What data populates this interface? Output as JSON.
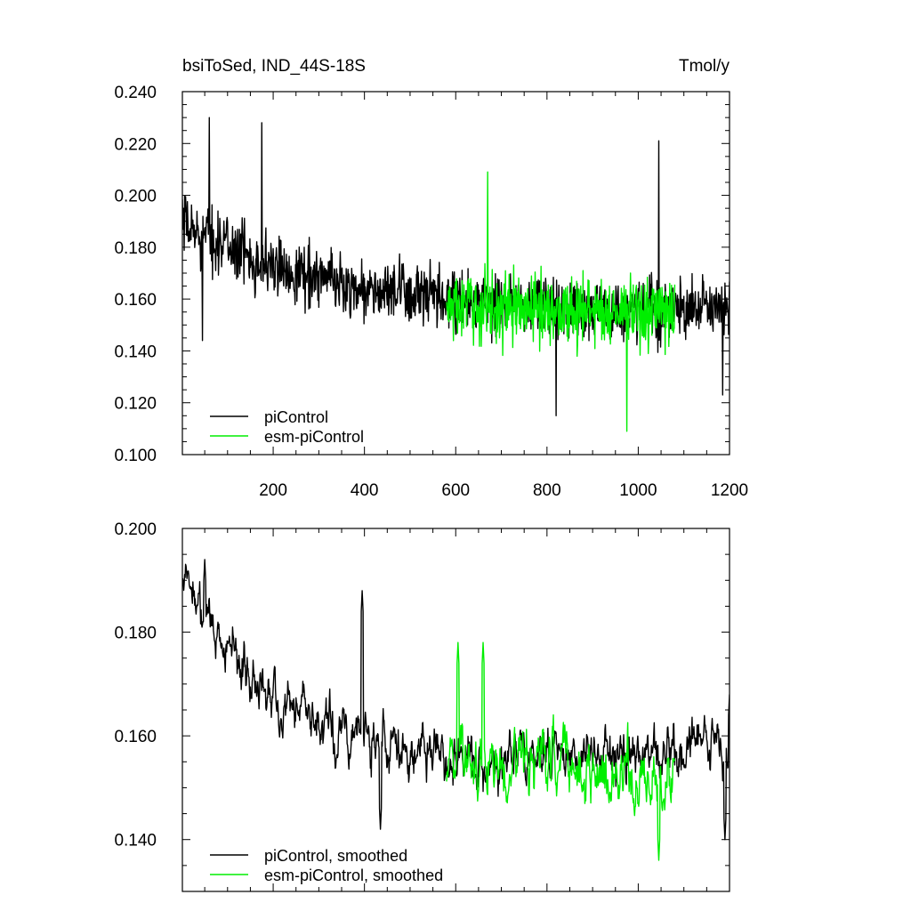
{
  "chart_data": [
    {
      "type": "line",
      "title_left": "bsiToSed, IND_44S-18S",
      "title_right": "Tmol/y",
      "xlabel": "",
      "ylabel": "",
      "xlim": [
        1,
        1200
      ],
      "ylim": [
        0.1,
        0.24
      ],
      "x_ticks": [
        200,
        400,
        600,
        800,
        1000,
        1200
      ],
      "x_tick_labels": [
        "200",
        "400",
        "600",
        "800",
        "1000",
        "1200"
      ],
      "y_ticks": [
        0.1,
        0.12,
        0.14,
        0.16,
        0.18,
        0.2,
        0.22,
        0.24
      ],
      "y_tick_labels": [
        "0.100",
        "0.120",
        "0.140",
        "0.160",
        "0.180",
        "0.200",
        "0.220",
        "0.240"
      ],
      "legend_position": "bottom-left",
      "series": [
        {
          "name": "piControl",
          "color": "#000000",
          "x_start": 1,
          "x_end": 1200,
          "trend_points": [
            [
              1,
              0.188
            ],
            [
              100,
              0.181
            ],
            [
              200,
              0.172
            ],
            [
              300,
              0.169
            ],
            [
              400,
              0.163
            ],
            [
              500,
              0.162
            ],
            [
              600,
              0.158
            ],
            [
              800,
              0.157
            ],
            [
              1000,
              0.156
            ],
            [
              1200,
              0.156
            ]
          ],
          "noise_amplitude": 0.016,
          "max_points": [
            [
              60,
              0.23
            ],
            [
              175,
              0.228
            ],
            [
              1045,
              0.221
            ]
          ],
          "min_points": [
            [
              45,
              0.144
            ],
            [
              820,
              0.115
            ],
            [
              1185,
              0.123
            ]
          ]
        },
        {
          "name": "esm-piControl",
          "color": "#00ee00",
          "x_start": 580,
          "x_end": 1080,
          "trend_points": [
            [
              580,
              0.157
            ],
            [
              800,
              0.156
            ],
            [
              1080,
              0.154
            ]
          ],
          "noise_amplitude": 0.018,
          "max_points": [
            [
              670,
              0.209
            ]
          ],
          "min_points": [
            [
              975,
              0.109
            ]
          ]
        }
      ]
    },
    {
      "type": "line",
      "title_left": "",
      "title_right": "",
      "xlabel": "",
      "ylabel": "",
      "xlim": [
        1,
        1200
      ],
      "ylim": [
        0.13,
        0.2
      ],
      "y_ticks": [
        0.14,
        0.16,
        0.18,
        0.2
      ],
      "y_tick_labels": [
        "0.140",
        "0.160",
        "0.180",
        "0.200"
      ],
      "legend_position": "bottom-left",
      "series": [
        {
          "name": "piControl, smoothed",
          "color": "#000000",
          "x_start": 1,
          "x_end": 1200,
          "trend_points": [
            [
              1,
              0.19
            ],
            [
              30,
              0.188
            ],
            [
              100,
              0.176
            ],
            [
              200,
              0.168
            ],
            [
              300,
              0.163
            ],
            [
              400,
              0.16
            ],
            [
              500,
              0.158
            ],
            [
              600,
              0.156
            ],
            [
              800,
              0.157
            ],
            [
              1000,
              0.156
            ],
            [
              1200,
              0.157
            ]
          ],
          "noise_amplitude": 0.008,
          "max_points": [
            [
              50,
              0.194
            ],
            [
              395,
              0.188
            ],
            [
              1200,
              0.168
            ]
          ],
          "min_points": [
            [
              435,
              0.142
            ],
            [
              1190,
              0.14
            ]
          ]
        },
        {
          "name": "esm-piControl, smoothed",
          "color": "#00ee00",
          "x_start": 580,
          "x_end": 1080,
          "trend_points": [
            [
              580,
              0.156
            ],
            [
              800,
              0.155
            ],
            [
              1080,
              0.152
            ]
          ],
          "noise_amplitude": 0.01,
          "max_points": [
            [
              605,
              0.178
            ],
            [
              660,
              0.178
            ]
          ],
          "min_points": [
            [
              1045,
              0.136
            ]
          ]
        }
      ]
    }
  ]
}
